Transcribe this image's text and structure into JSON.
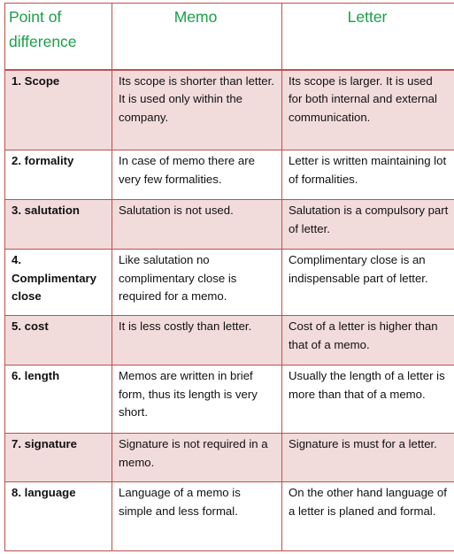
{
  "table": {
    "headers": [
      "Point of difference",
      "Memo",
      "Letter"
    ],
    "rows": [
      {
        "point": "1. Scope",
        "memo": "Its scope is shorter than letter. It is used only within the company.",
        "letter": "Its scope is larger. It is used for both internal and external communication."
      },
      {
        "point": "2. formality",
        "memo": "In case of memo there are very few formalities.",
        "letter": "Letter is written maintaining lot of formalities."
      },
      {
        "point": "3. salutation",
        "memo": "Salutation is not used.",
        "letter": "Salutation is a compulsory part of letter."
      },
      {
        "point": "4. Complimentary close",
        "memo": "Like salutation no complimentary close is required for a memo.",
        "letter": "Complimentary close is an indispensable part of letter."
      },
      {
        "point": "5. cost",
        "memo": "It is less costly than letter.",
        "letter": "Cost of a letter is higher than that of a memo."
      },
      {
        "point": "6. length",
        "memo": "Memos are written in brief form, thus its length is very short.",
        "letter": "Usually the length of a letter is more than that of a memo."
      },
      {
        "point": "7. signature",
        "memo": "Signature is not required in a memo.",
        "letter": "Signature is must for a letter."
      },
      {
        "point": "8. language",
        "memo": "Language of a memo is simple and less formal.",
        "letter": "On the other hand language of a letter is planed and formal."
      }
    ]
  }
}
